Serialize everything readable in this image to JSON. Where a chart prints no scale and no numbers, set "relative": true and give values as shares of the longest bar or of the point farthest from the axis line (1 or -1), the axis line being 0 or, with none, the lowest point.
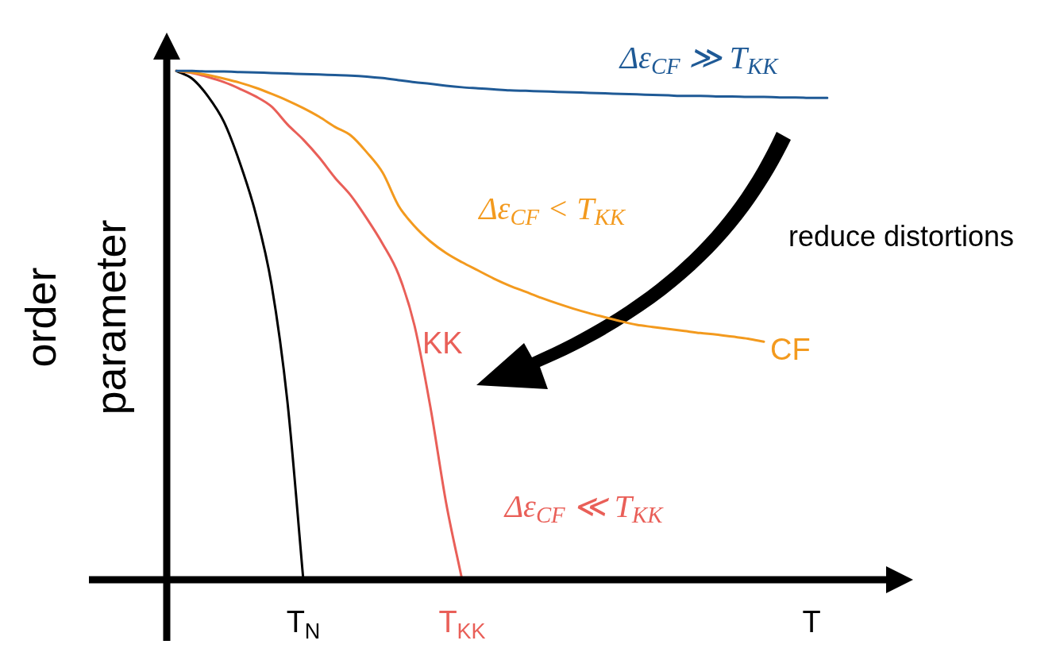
{
  "chart_data": {
    "type": "line",
    "relative": true,
    "ylabel": "order parameter",
    "categories": [
      null,
      null,
      null,
      null,
      null,
      null,
      null,
      null,
      "T$_{N}$",
      null,
      null,
      null,
      null,
      null,
      null,
      null,
      null,
      null,
      "T$_{KK}$",
      null,
      null,
      null,
      null,
      null,
      null,
      null,
      null,
      null,
      null,
      null,
      null,
      null,
      null,
      null,
      null,
      null,
      null,
      null,
      null,
      null,
      "T",
      null
    ],
    "tick_labels": "x",
    "grid": false,
    "legend": false,
    "marker": "none",
    "line_style": "solid",
    "series": [
      {
        "color": "#1f5a96",
        "values": [
          1.0,
          1.0,
          0.999,
          0.999,
          0.998,
          0.997,
          0.996,
          0.995,
          0.994,
          0.993,
          0.992,
          0.991,
          0.989,
          0.986,
          0.982,
          0.978,
          0.975,
          0.971,
          0.968,
          0.966,
          0.964,
          0.962,
          0.961,
          0.96,
          0.959,
          0.958,
          0.957,
          0.956,
          0.955,
          0.954,
          0.953,
          0.952,
          0.951,
          0.951,
          0.95,
          0.95,
          0.949,
          0.949,
          0.948,
          0.948,
          0.947,
          0.947
        ]
      },
      {
        "name": "CF",
        "color": "#f39a1e",
        "values": [
          1.0,
          0.997,
          0.992,
          0.985,
          0.977,
          0.967,
          0.955,
          0.942,
          0.927,
          0.91,
          0.89,
          0.873,
          0.84,
          0.8,
          0.735,
          0.695,
          0.665,
          0.642,
          0.624,
          0.608,
          0.592,
          0.578,
          0.566,
          0.554,
          0.543,
          0.533,
          0.524,
          0.516,
          0.508,
          0.501,
          0.497,
          0.493,
          0.489,
          0.485,
          0.482,
          0.478,
          0.474,
          0.468,
          null,
          null,
          null,
          null
        ]
      },
      {
        "name": "KK",
        "color": "#e95f58",
        "values": [
          1.0,
          0.996,
          0.988,
          0.978,
          0.965,
          0.95,
          0.93,
          0.895,
          0.865,
          0.83,
          0.79,
          0.755,
          0.71,
          0.66,
          0.6,
          0.5,
          0.34,
          0.15,
          0,
          null,
          null,
          null,
          null,
          null,
          null,
          null,
          null,
          null,
          null,
          null,
          null,
          null,
          null,
          null,
          null,
          null,
          null,
          null,
          null,
          null,
          null,
          null
        ]
      },
      {
        "color": "#000000",
        "values": [
          1.0,
          0.985,
          0.95,
          0.9,
          0.82,
          0.72,
          0.58,
          0.35,
          0,
          null,
          null,
          null,
          null,
          null,
          null,
          null,
          null,
          null,
          null,
          null,
          null,
          null,
          null,
          null,
          null,
          null,
          null,
          null,
          null,
          null,
          null,
          null,
          null,
          null,
          null,
          null,
          null,
          null,
          null,
          null,
          null,
          null
        ]
      }
    ],
    "annotations": [
      "Δε$_{CF}$ ≫ T$_{KK}$",
      "Δε$_{CF}$ < T$_{KK}$",
      "Δε$_{CF}$ ≪ T$_{KK}$",
      "reduce distortions"
    ]
  }
}
